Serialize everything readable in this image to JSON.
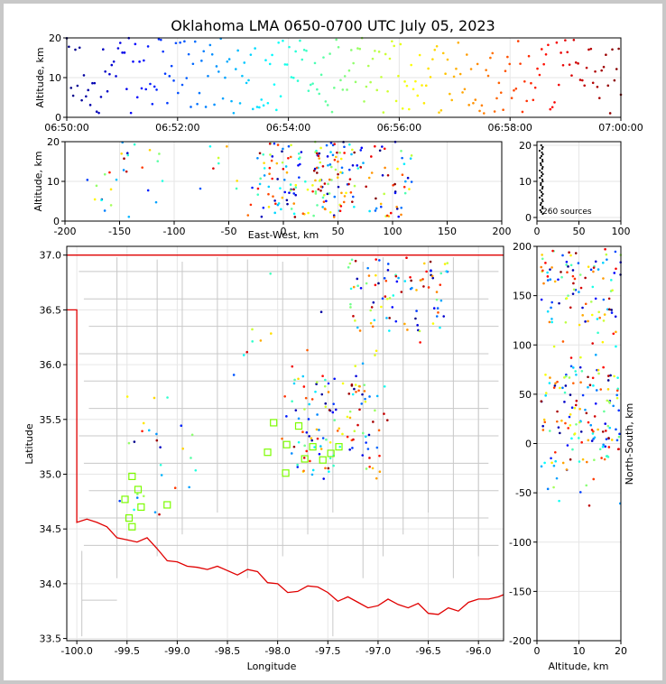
{
  "title": "Oklahoma LMA 0650-0700 UTC July 05, 2023",
  "panels": {
    "time_height": {
      "ylabel": "Altitude, km",
      "xticks": [
        "06:50:00",
        "06:52:00",
        "06:54:00",
        "06:56:00",
        "06:58:00",
        "07:00:00"
      ],
      "yticks": [
        "0",
        "10",
        "20"
      ]
    },
    "ew_height": {
      "ylabel": "Altitude, km",
      "xlabel": "East-West, km",
      "xticks": [
        "-200",
        "-150",
        "-100",
        "-50",
        "0",
        "50",
        "100",
        "150",
        "200"
      ],
      "yticks": [
        "0",
        "10",
        "20"
      ]
    },
    "hist": {
      "annotation": "260 sources",
      "xticks": [
        "0",
        "50",
        "100"
      ],
      "yticks": [
        "0",
        "10",
        "20"
      ]
    },
    "plan": {
      "xlabel": "Longitude",
      "ylabel": "Latitude",
      "xticks": [
        "-100.0",
        "-99.5",
        "-99.0",
        "-98.5",
        "-98.0",
        "-97.5",
        "-97.0",
        "-96.5",
        "-96.0"
      ],
      "yticks": [
        "37.0",
        "36.5",
        "36.0",
        "35.5",
        "35.0",
        "34.5",
        "34.0",
        "33.5"
      ]
    },
    "ns_height": {
      "xlabel": "Altitude, km",
      "ylabel": "North-South, km",
      "xticks": [
        "0",
        "10",
        "20"
      ],
      "yticks": [
        "200",
        "150",
        "100",
        "50",
        "0",
        "-50",
        "-100",
        "-150",
        "-200"
      ]
    }
  },
  "colors": {
    "state_border": "#e00000",
    "county_lines": "#c8c8c8",
    "station_marker": "#7cfc00"
  },
  "chart_data": {
    "type": "scatter",
    "title": "Oklahoma LMA 0650-0700 UTC July 05, 2023",
    "source_count": 260,
    "time_range": [
      "06:50:00",
      "07:00:00"
    ],
    "color_by": "time (blue early → red late)",
    "altitude_range_km": [
      0,
      20
    ],
    "ew_range_km": [
      -200,
      200
    ],
    "ns_range_km": [
      -200,
      200
    ],
    "lon_range": [
      -100.1,
      -95.75
    ],
    "lat_range": [
      33.48,
      37.08
    ],
    "stations": [
      {
        "lon": -99.45,
        "lat": 34.98
      },
      {
        "lon": -99.39,
        "lat": 34.86
      },
      {
        "lon": -99.52,
        "lat": 34.77
      },
      {
        "lon": -99.36,
        "lat": 34.7
      },
      {
        "lon": -99.48,
        "lat": 34.6
      },
      {
        "lon": -99.45,
        "lat": 34.52
      },
      {
        "lon": -99.1,
        "lat": 34.72
      },
      {
        "lon": -98.1,
        "lat": 35.2
      },
      {
        "lon": -98.04,
        "lat": 35.47
      },
      {
        "lon": -97.91,
        "lat": 35.27
      },
      {
        "lon": -97.79,
        "lat": 35.44
      },
      {
        "lon": -97.65,
        "lat": 35.25
      },
      {
        "lon": -97.73,
        "lat": 35.14
      },
      {
        "lon": -97.55,
        "lat": 35.13
      },
      {
        "lon": -97.47,
        "lat": 35.19
      },
      {
        "lon": -97.92,
        "lat": 35.01
      },
      {
        "lon": -97.39,
        "lat": 35.25
      }
    ]
  }
}
